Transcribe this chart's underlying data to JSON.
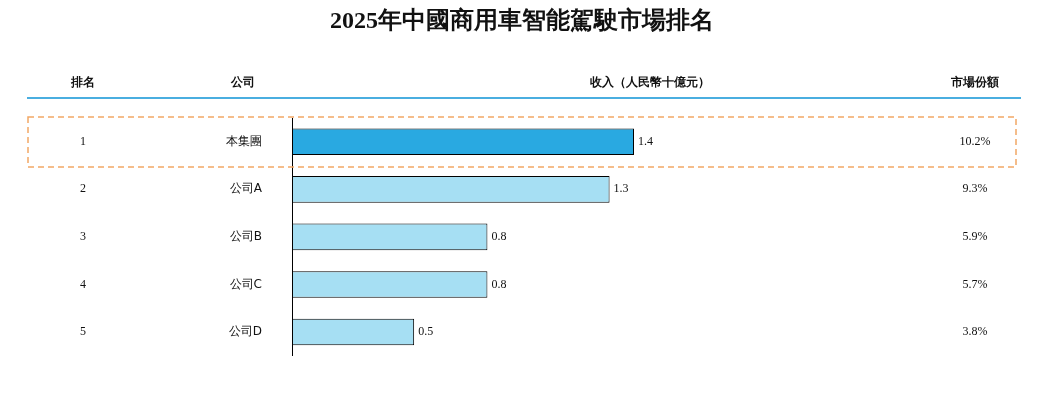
{
  "chart_data": {
    "type": "bar",
    "orientation": "horizontal",
    "title": "2025年中國商用車智能駕駛市場排名",
    "xlabel": "收入（人民幣十億元）",
    "ylabel": "公司",
    "categories": [
      "本集團",
      "公司A",
      "公司B",
      "公司C",
      "公司D"
    ],
    "values": [
      1.4,
      1.3,
      0.8,
      0.8,
      0.5
    ],
    "colors": [
      "#29a9e1",
      "#a6dff3",
      "#a6dff3",
      "#a6dff3",
      "#a6dff3"
    ],
    "data_labels": true,
    "tick_labels": "y",
    "annotations": [
      "排名",
      "市場份額",
      "1",
      "2",
      "3",
      "4",
      "5",
      "10.2%",
      "9.3%",
      "5.9%",
      "5.7%",
      "3.8%"
    ]
  }
}
